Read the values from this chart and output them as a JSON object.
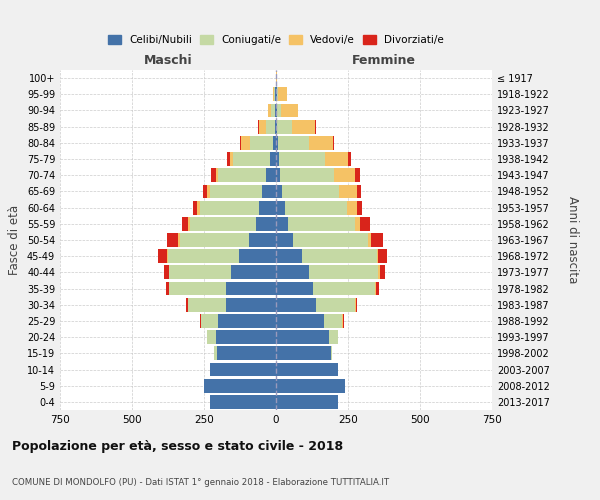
{
  "age_groups": [
    "0-4",
    "5-9",
    "10-14",
    "15-19",
    "20-24",
    "25-29",
    "30-34",
    "35-39",
    "40-44",
    "45-49",
    "50-54",
    "55-59",
    "60-64",
    "65-69",
    "70-74",
    "75-79",
    "80-84",
    "85-89",
    "90-94",
    "95-99",
    "100+"
  ],
  "birth_years": [
    "2013-2017",
    "2008-2012",
    "2003-2007",
    "1998-2002",
    "1993-1997",
    "1988-1992",
    "1983-1987",
    "1978-1982",
    "1973-1977",
    "1968-1972",
    "1963-1967",
    "1958-1962",
    "1953-1957",
    "1948-1952",
    "1943-1947",
    "1938-1942",
    "1933-1937",
    "1928-1932",
    "1923-1927",
    "1918-1922",
    "≤ 1917"
  ],
  "colors": {
    "celibe": "#4472a8",
    "coniugato": "#c5d9a4",
    "vedovo": "#f5c265",
    "divorziato": "#d9241b"
  },
  "maschi": {
    "celibe": [
      230,
      250,
      230,
      205,
      210,
      200,
      175,
      175,
      155,
      130,
      95,
      70,
      60,
      50,
      35,
      20,
      10,
      5,
      3,
      2,
      0
    ],
    "coniugato": [
      0,
      0,
      0,
      10,
      30,
      60,
      130,
      195,
      215,
      245,
      240,
      230,
      205,
      180,
      165,
      130,
      80,
      30,
      15,
      5,
      0
    ],
    "vedovo": [
      0,
      0,
      0,
      0,
      0,
      2,
      2,
      3,
      3,
      3,
      5,
      5,
      8,
      10,
      10,
      10,
      30,
      25,
      10,
      5,
      0
    ],
    "divorziato": [
      0,
      0,
      0,
      0,
      0,
      3,
      5,
      10,
      15,
      30,
      40,
      20,
      15,
      15,
      15,
      10,
      5,
      3,
      0,
      0,
      0
    ]
  },
  "femmine": {
    "celibe": [
      215,
      240,
      215,
      190,
      185,
      165,
      140,
      130,
      115,
      90,
      60,
      40,
      30,
      20,
      15,
      10,
      8,
      5,
      3,
      2,
      0
    ],
    "coniugato": [
      0,
      0,
      0,
      5,
      30,
      65,
      135,
      215,
      240,
      260,
      260,
      235,
      215,
      200,
      185,
      160,
      105,
      50,
      15,
      5,
      0
    ],
    "vedovo": [
      0,
      0,
      0,
      0,
      0,
      2,
      2,
      3,
      5,
      5,
      10,
      15,
      35,
      60,
      75,
      80,
      85,
      80,
      60,
      30,
      5
    ],
    "divorziato": [
      0,
      0,
      0,
      0,
      0,
      3,
      5,
      10,
      20,
      30,
      40,
      35,
      20,
      15,
      15,
      10,
      5,
      3,
      0,
      0,
      0
    ]
  },
  "title": "Popolazione per età, sesso e stato civile - 2018",
  "subtitle": "COMUNE DI MONDOLFO (PU) - Dati ISTAT 1° gennaio 2018 - Elaborazione TUTTITALIA.IT",
  "xlabel_maschi": "Maschi",
  "xlabel_femmine": "Femmine",
  "ylabel": "Fasce di età",
  "ylabel_right": "Anni di nascita",
  "xlim": 750,
  "legend_labels": [
    "Celibi/Nubili",
    "Coniugati/e",
    "Vedovi/e",
    "Divorziati/e"
  ],
  "bg_color": "#f0f0f0",
  "plot_bg_color": "#ffffff"
}
